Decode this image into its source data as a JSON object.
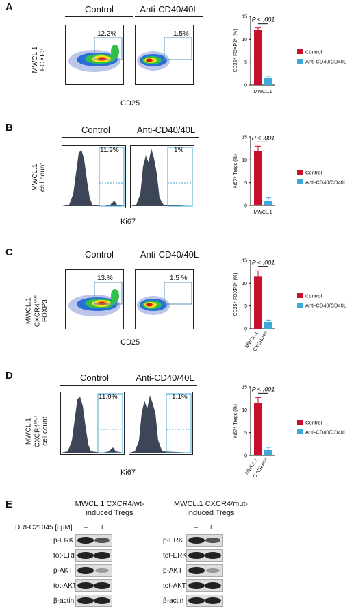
{
  "panels": {
    "A": {
      "letter": "A",
      "control": "Control",
      "treated": "Anti-CD40/40L",
      "control_pct": "12.2%",
      "treated_pct": "1.5%",
      "ylabel_line1": "MWCL.1",
      "ylabel_line2": "FOXP3",
      "xlabel": "CD25"
    },
    "B": {
      "letter": "B",
      "control": "Control",
      "treated": "Anti-CD40/40L",
      "control_pct": "11.9%",
      "treated_pct": "1%",
      "ylabel_line1": "MWCL.1",
      "ylabel_line2": "cell count",
      "xlabel": "Ki67"
    },
    "C": {
      "letter": "C",
      "control": "Control",
      "treated": "Anti-CD40/40L",
      "control_pct": "13.%",
      "treated_pct": "1.5 %",
      "ylabel_line1": "MWCL.1",
      "ylabel_line2": "CXCR4",
      "ylabel_sup": "MUT",
      "ylabel_line3": "FOXP3",
      "xlabel": "CD25"
    },
    "D": {
      "letter": "D",
      "control": "Control",
      "treated": "Anti-CD40/40L",
      "control_pct": "11.9%",
      "treated_pct": "1.1%",
      "ylabel_line1": "MWCL.1",
      "ylabel_line2": "CXCR4",
      "ylabel_sup": "MUT",
      "ylabel_line3": "cell count",
      "xlabel": "Ki67"
    },
    "E": {
      "letter": "E",
      "left_title_1": "MWCL.1 CXCR4/wt-",
      "left_title_2": "induced Tregs",
      "right_title_1": "MWCL.1 CXCR4/mut-",
      "right_title_2": "induced Tregs",
      "drug_label": "DRI-C21045 [8μM]",
      "minus": "–",
      "plus": "+",
      "rows": [
        "p-ERK",
        "tot-ERK",
        "p-AKT",
        "tot-AKT",
        "β-actin"
      ]
    }
  },
  "flow_ticks": {
    "y": [
      "10⁵",
      "10⁴",
      "10³",
      "10²",
      "10¹",
      "10⁰"
    ],
    "x": [
      "10⁰",
      "10¹",
      "10²",
      "10³",
      "10⁴",
      "10⁵"
    ],
    "hist_x": [
      "-10²",
      "0",
      "10²",
      "10³",
      "10⁴",
      "10⁵"
    ]
  },
  "colors": {
    "control": "#c8102e",
    "anti": "#3fa9d9"
  },
  "chart_data": [
    {
      "type": "bar",
      "panel": "A",
      "ylabel": "CD25⁺ FOXP3⁺ (%)",
      "yticks": [
        "0",
        "5",
        "10",
        "15"
      ],
      "ylim": [
        0,
        15
      ],
      "categories": [
        "MWCL.1"
      ],
      "series": [
        {
          "name": "Control",
          "values": [
            12.0
          ],
          "errors": [
            0.5
          ]
        },
        {
          "name": "Anti-CD40/CD40L",
          "values": [
            1.5
          ],
          "errors": [
            0.3
          ]
        }
      ],
      "pvalue": "P < .001"
    },
    {
      "type": "bar",
      "panel": "B",
      "ylabel": "Ki67⁺ Tregs (%)",
      "yticks": [
        "0",
        "5",
        "10",
        "15"
      ],
      "ylim": [
        0,
        15
      ],
      "categories": [
        "MWCL.1"
      ],
      "series": [
        {
          "name": "Control",
          "values": [
            12.0
          ],
          "errors": [
            1.0
          ]
        },
        {
          "name": "Anti-CD40/CD40L",
          "values": [
            1.0
          ],
          "errors": [
            0.7
          ]
        }
      ],
      "pvalue": "P < .001"
    },
    {
      "type": "bar",
      "panel": "C",
      "ylabel": "CD25⁺ FOXP3⁺ (%)",
      "yticks": [
        "0",
        "5",
        "10",
        "15"
      ],
      "ylim": [
        0,
        15
      ],
      "categories": [
        "MWCL.1",
        "CXCR4ᴹᵁᵀ"
      ],
      "series": [
        {
          "name": "Control",
          "values": [
            11.5,
            null
          ],
          "errors": [
            1.2,
            null
          ]
        },
        {
          "name": "Anti-CD40/CD40L",
          "values": [
            null,
            1.5
          ],
          "errors": [
            null,
            0.4
          ]
        }
      ],
      "pvalue": "P < .001"
    },
    {
      "type": "bar",
      "panel": "D",
      "ylabel": "Ki67⁺ Tregs (%)",
      "yticks": [
        "0",
        "5",
        "10",
        "15"
      ],
      "ylim": [
        0,
        15
      ],
      "categories": [
        "MWCL.1",
        "CXCR4ᴹᵁᵀ"
      ],
      "series": [
        {
          "name": "Control",
          "values": [
            11.5,
            null
          ],
          "errors": [
            1.2,
            null
          ]
        },
        {
          "name": "Anti-CD40/CD40L",
          "values": [
            null,
            1.2
          ],
          "errors": [
            null,
            0.6
          ]
        }
      ],
      "pvalue": "P < .001"
    }
  ]
}
